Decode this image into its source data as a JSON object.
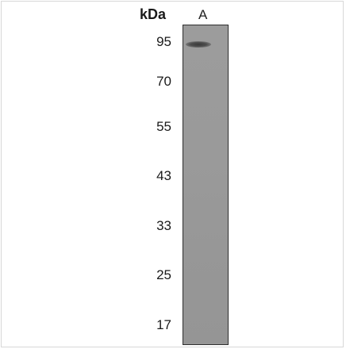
{
  "blot": {
    "unit_label": "kDa",
    "lanes": [
      {
        "label": "A"
      }
    ],
    "markers": [
      "95",
      "70",
      "55",
      "43",
      "33",
      "25",
      "17"
    ],
    "band_kda": 95,
    "colors": {
      "membrane": "#999999",
      "band": "#3a3a3a"
    }
  }
}
